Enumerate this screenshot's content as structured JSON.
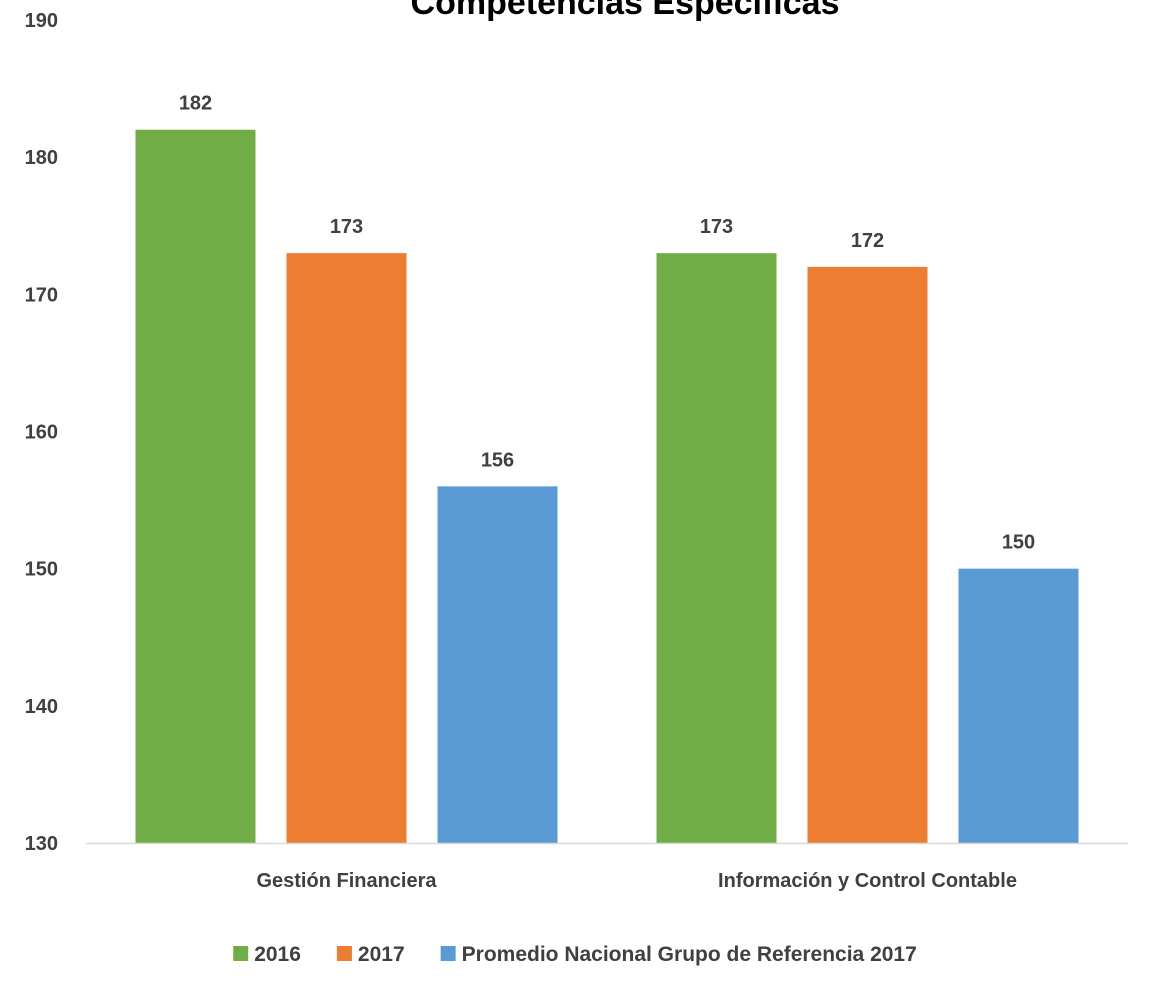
{
  "chart_data": {
    "type": "bar",
    "title": "Competencias Específicas",
    "categories": [
      "Gestión Financiera",
      "Información y Control Contable"
    ],
    "series": [
      {
        "name": "2016",
        "values": [
          182,
          173
        ],
        "color": "#70AD47"
      },
      {
        "name": "2017",
        "values": [
          173,
          172
        ],
        "color": "#ED7D31"
      },
      {
        "name": "Promedio Nacional Grupo de Referencia 2017",
        "values": [
          156,
          150
        ],
        "color": "#5B9BD5"
      }
    ],
    "ylim": [
      130,
      190
    ],
    "yticks": [
      130,
      140,
      150,
      160,
      170,
      180,
      190
    ],
    "xlabel": "",
    "ylabel": "",
    "grid": false,
    "legend_position": "bottom",
    "data_labels": true
  }
}
